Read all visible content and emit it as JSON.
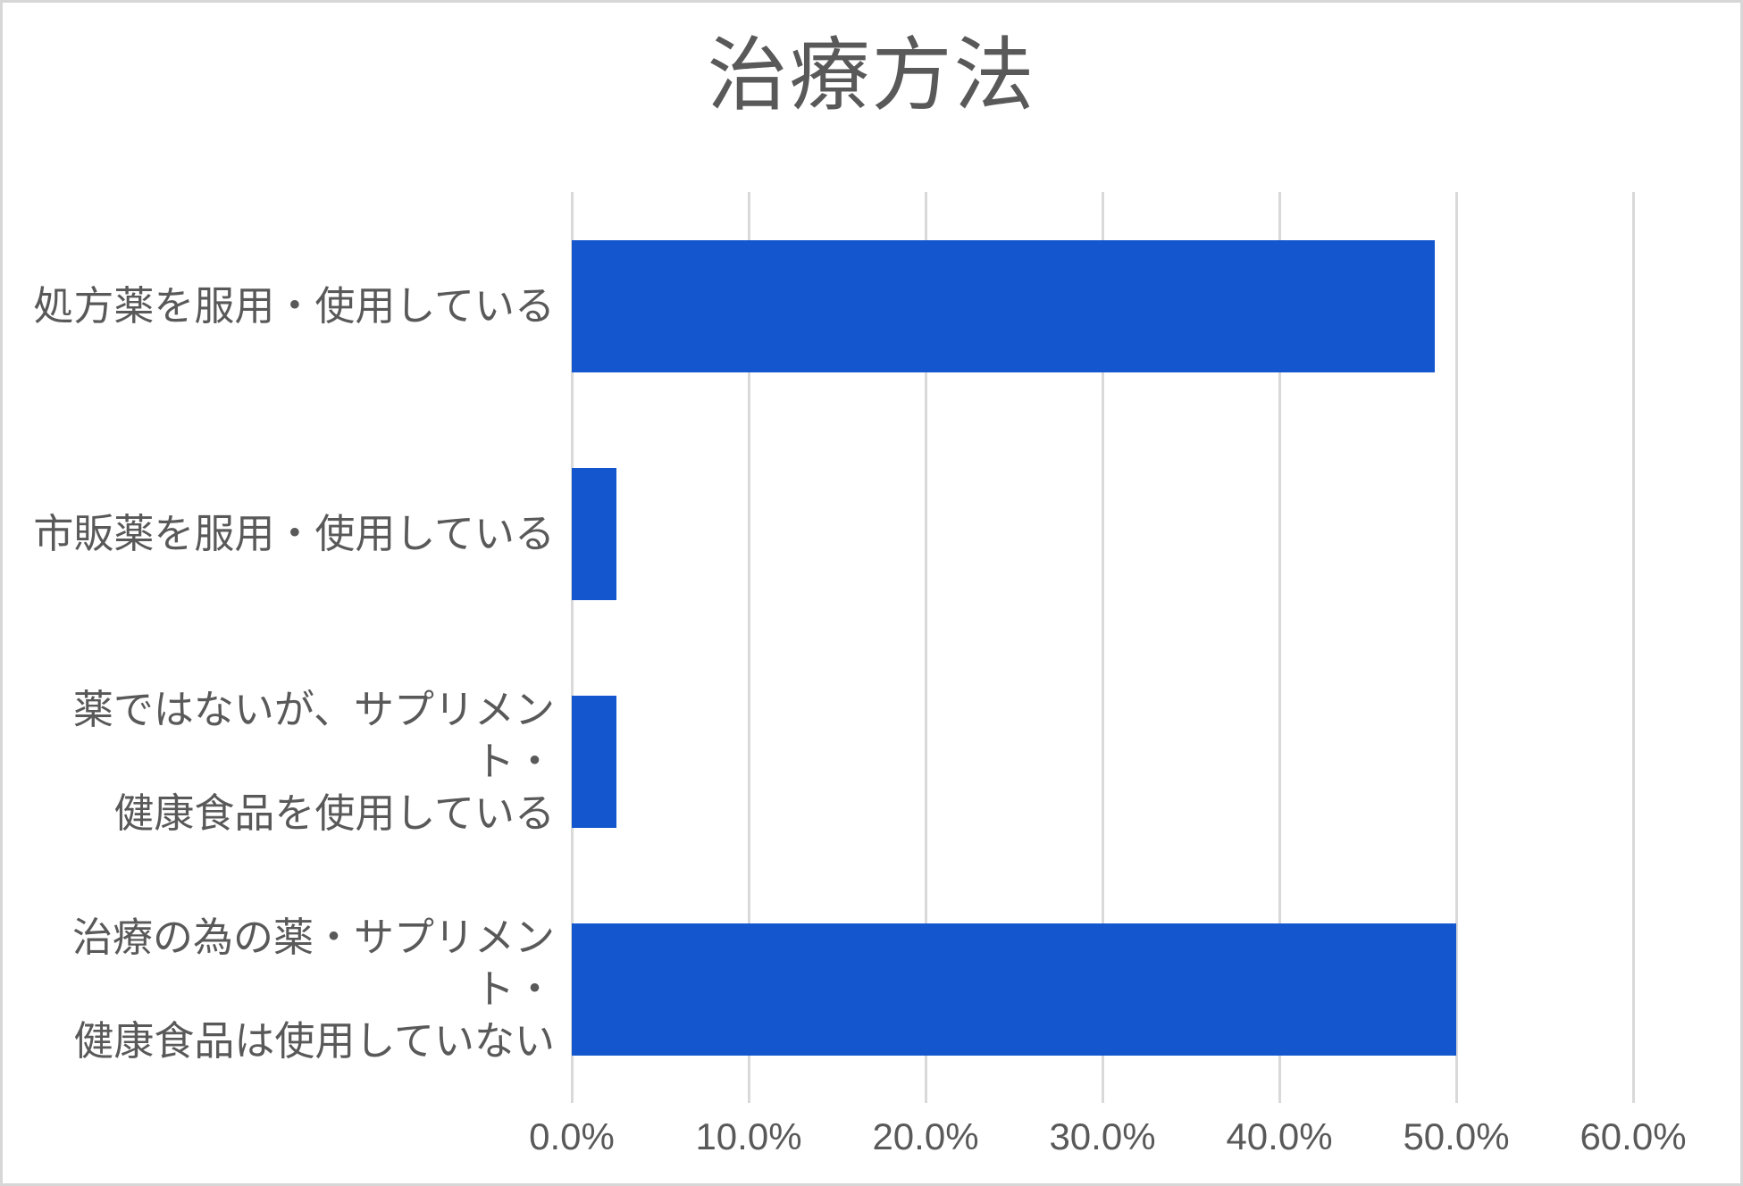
{
  "chart_data": {
    "type": "bar",
    "orientation": "horizontal",
    "title": "治療方法",
    "categories": [
      "処方薬を服用・使用している",
      "市販薬を服用・使用している",
      "薬ではないが、サプリメント・\n健康食品を使用している",
      "治療の為の薬・サプリメント・\n健康食品は使用していない"
    ],
    "values": [
      48.8,
      2.5,
      2.5,
      50.0
    ],
    "value_unit": "%",
    "xlabel": "",
    "ylabel": "",
    "xlim": [
      0,
      60
    ],
    "x_ticks": [
      0,
      10,
      20,
      30,
      40,
      50,
      60
    ],
    "x_tick_labels": [
      "0.0%",
      "10.0%",
      "20.0%",
      "30.0%",
      "40.0%",
      "50.0%",
      "60.0%"
    ],
    "grid": "vertical-only",
    "legend": "none",
    "colors": {
      "bar": "#1356CE",
      "gridline": "#D9D9D9",
      "text": "#595959",
      "border": "#D7D7D7",
      "background": "#FFFFFF"
    }
  }
}
